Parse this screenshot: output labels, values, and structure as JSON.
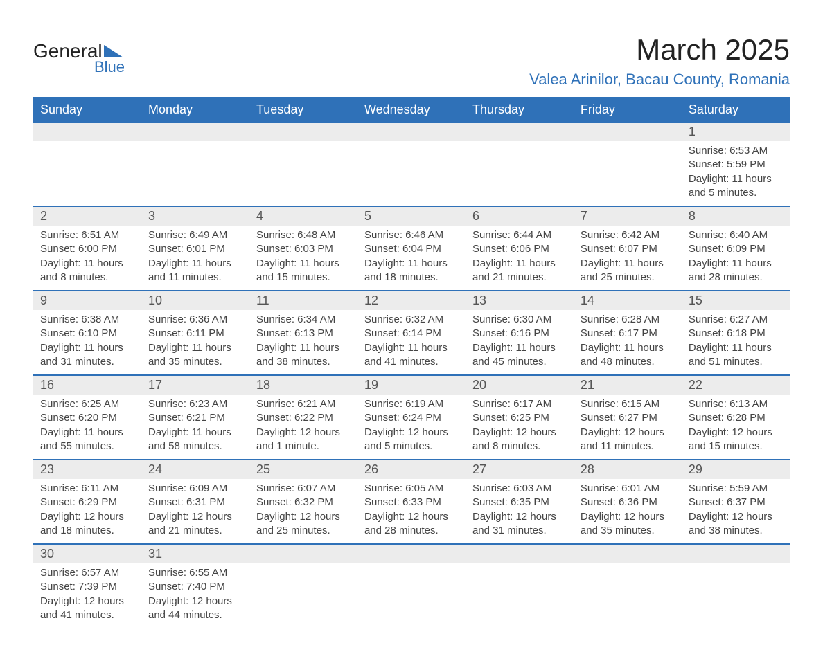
{
  "logo": {
    "text_main": "General",
    "text_sub": "Blue",
    "tri_color": "#2f71b8"
  },
  "title": "March 2025",
  "location": "Valea Arinilor, Bacau County, Romania",
  "style": {
    "header_bg": "#2f71b8",
    "header_fg": "#ffffff",
    "row_accent": "#2f71b8",
    "daynum_bg": "#ececec",
    "body_bg": "#ffffff",
    "text_color": "#333333",
    "title_fontsize": 42,
    "location_fontsize": 22,
    "header_fontsize": 18,
    "daynum_fontsize": 18,
    "data_fontsize": 15
  },
  "calendar": {
    "type": "table",
    "columns": [
      "Sunday",
      "Monday",
      "Tuesday",
      "Wednesday",
      "Thursday",
      "Friday",
      "Saturday"
    ],
    "weeks": [
      {
        "days": [
          null,
          null,
          null,
          null,
          null,
          null,
          {
            "n": "1",
            "sr": "Sunrise: 6:53 AM",
            "ss": "Sunset: 5:59 PM",
            "dl": "Daylight: 11 hours and 5 minutes."
          }
        ]
      },
      {
        "days": [
          {
            "n": "2",
            "sr": "Sunrise: 6:51 AM",
            "ss": "Sunset: 6:00 PM",
            "dl": "Daylight: 11 hours and 8 minutes."
          },
          {
            "n": "3",
            "sr": "Sunrise: 6:49 AM",
            "ss": "Sunset: 6:01 PM",
            "dl": "Daylight: 11 hours and 11 minutes."
          },
          {
            "n": "4",
            "sr": "Sunrise: 6:48 AM",
            "ss": "Sunset: 6:03 PM",
            "dl": "Daylight: 11 hours and 15 minutes."
          },
          {
            "n": "5",
            "sr": "Sunrise: 6:46 AM",
            "ss": "Sunset: 6:04 PM",
            "dl": "Daylight: 11 hours and 18 minutes."
          },
          {
            "n": "6",
            "sr": "Sunrise: 6:44 AM",
            "ss": "Sunset: 6:06 PM",
            "dl": "Daylight: 11 hours and 21 minutes."
          },
          {
            "n": "7",
            "sr": "Sunrise: 6:42 AM",
            "ss": "Sunset: 6:07 PM",
            "dl": "Daylight: 11 hours and 25 minutes."
          },
          {
            "n": "8",
            "sr": "Sunrise: 6:40 AM",
            "ss": "Sunset: 6:09 PM",
            "dl": "Daylight: 11 hours and 28 minutes."
          }
        ]
      },
      {
        "days": [
          {
            "n": "9",
            "sr": "Sunrise: 6:38 AM",
            "ss": "Sunset: 6:10 PM",
            "dl": "Daylight: 11 hours and 31 minutes."
          },
          {
            "n": "10",
            "sr": "Sunrise: 6:36 AM",
            "ss": "Sunset: 6:11 PM",
            "dl": "Daylight: 11 hours and 35 minutes."
          },
          {
            "n": "11",
            "sr": "Sunrise: 6:34 AM",
            "ss": "Sunset: 6:13 PM",
            "dl": "Daylight: 11 hours and 38 minutes."
          },
          {
            "n": "12",
            "sr": "Sunrise: 6:32 AM",
            "ss": "Sunset: 6:14 PM",
            "dl": "Daylight: 11 hours and 41 minutes."
          },
          {
            "n": "13",
            "sr": "Sunrise: 6:30 AM",
            "ss": "Sunset: 6:16 PM",
            "dl": "Daylight: 11 hours and 45 minutes."
          },
          {
            "n": "14",
            "sr": "Sunrise: 6:28 AM",
            "ss": "Sunset: 6:17 PM",
            "dl": "Daylight: 11 hours and 48 minutes."
          },
          {
            "n": "15",
            "sr": "Sunrise: 6:27 AM",
            "ss": "Sunset: 6:18 PM",
            "dl": "Daylight: 11 hours and 51 minutes."
          }
        ]
      },
      {
        "days": [
          {
            "n": "16",
            "sr": "Sunrise: 6:25 AM",
            "ss": "Sunset: 6:20 PM",
            "dl": "Daylight: 11 hours and 55 minutes."
          },
          {
            "n": "17",
            "sr": "Sunrise: 6:23 AM",
            "ss": "Sunset: 6:21 PM",
            "dl": "Daylight: 11 hours and 58 minutes."
          },
          {
            "n": "18",
            "sr": "Sunrise: 6:21 AM",
            "ss": "Sunset: 6:22 PM",
            "dl": "Daylight: 12 hours and 1 minute."
          },
          {
            "n": "19",
            "sr": "Sunrise: 6:19 AM",
            "ss": "Sunset: 6:24 PM",
            "dl": "Daylight: 12 hours and 5 minutes."
          },
          {
            "n": "20",
            "sr": "Sunrise: 6:17 AM",
            "ss": "Sunset: 6:25 PM",
            "dl": "Daylight: 12 hours and 8 minutes."
          },
          {
            "n": "21",
            "sr": "Sunrise: 6:15 AM",
            "ss": "Sunset: 6:27 PM",
            "dl": "Daylight: 12 hours and 11 minutes."
          },
          {
            "n": "22",
            "sr": "Sunrise: 6:13 AM",
            "ss": "Sunset: 6:28 PM",
            "dl": "Daylight: 12 hours and 15 minutes."
          }
        ]
      },
      {
        "days": [
          {
            "n": "23",
            "sr": "Sunrise: 6:11 AM",
            "ss": "Sunset: 6:29 PM",
            "dl": "Daylight: 12 hours and 18 minutes."
          },
          {
            "n": "24",
            "sr": "Sunrise: 6:09 AM",
            "ss": "Sunset: 6:31 PM",
            "dl": "Daylight: 12 hours and 21 minutes."
          },
          {
            "n": "25",
            "sr": "Sunrise: 6:07 AM",
            "ss": "Sunset: 6:32 PM",
            "dl": "Daylight: 12 hours and 25 minutes."
          },
          {
            "n": "26",
            "sr": "Sunrise: 6:05 AM",
            "ss": "Sunset: 6:33 PM",
            "dl": "Daylight: 12 hours and 28 minutes."
          },
          {
            "n": "27",
            "sr": "Sunrise: 6:03 AM",
            "ss": "Sunset: 6:35 PM",
            "dl": "Daylight: 12 hours and 31 minutes."
          },
          {
            "n": "28",
            "sr": "Sunrise: 6:01 AM",
            "ss": "Sunset: 6:36 PM",
            "dl": "Daylight: 12 hours and 35 minutes."
          },
          {
            "n": "29",
            "sr": "Sunrise: 5:59 AM",
            "ss": "Sunset: 6:37 PM",
            "dl": "Daylight: 12 hours and 38 minutes."
          }
        ]
      },
      {
        "days": [
          {
            "n": "30",
            "sr": "Sunrise: 6:57 AM",
            "ss": "Sunset: 7:39 PM",
            "dl": "Daylight: 12 hours and 41 minutes."
          },
          {
            "n": "31",
            "sr": "Sunrise: 6:55 AM",
            "ss": "Sunset: 7:40 PM",
            "dl": "Daylight: 12 hours and 44 minutes."
          },
          null,
          null,
          null,
          null,
          null
        ]
      }
    ]
  }
}
